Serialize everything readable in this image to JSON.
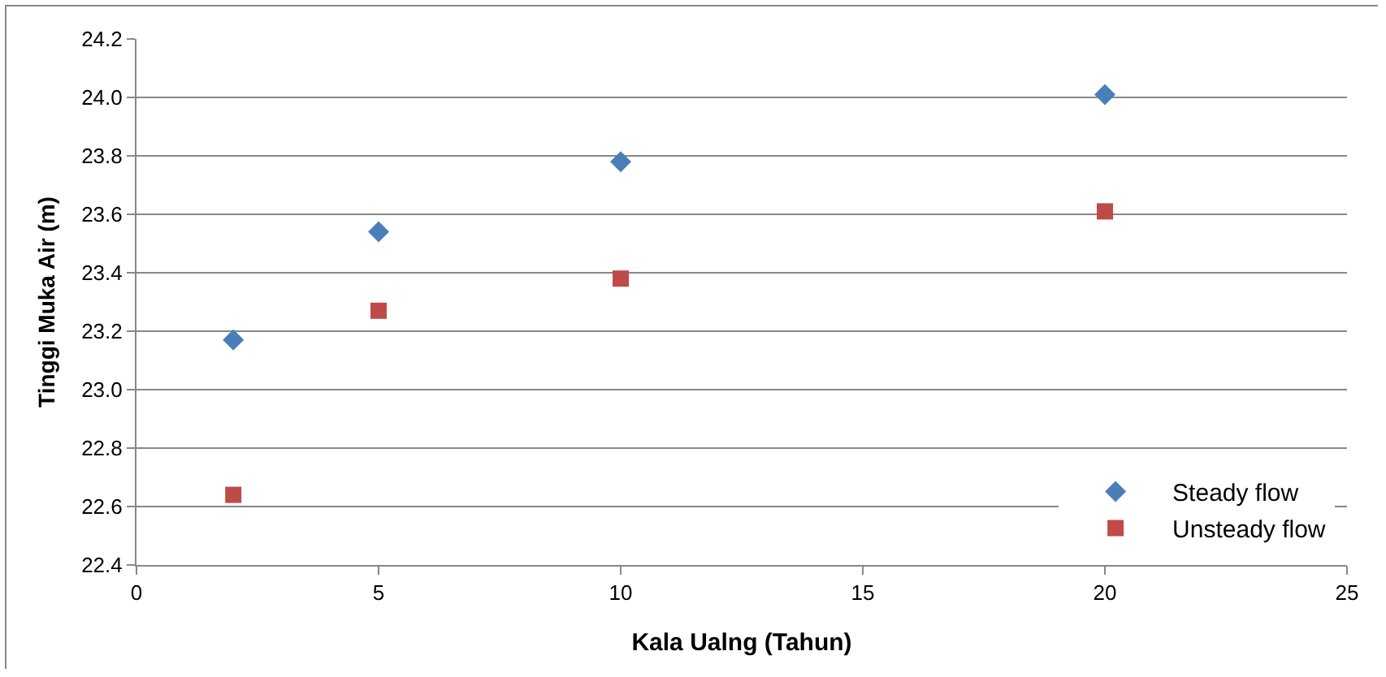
{
  "chart_data": {
    "type": "scatter",
    "xlabel": "Kala Ualng (Tahun)",
    "ylabel": "Tinggi Muka Air (m)",
    "x": [
      2,
      5,
      10,
      20
    ],
    "series": [
      {
        "name": "Steady flow",
        "color": "#4a7ebb",
        "marker": "diamond",
        "values": [
          23.17,
          23.54,
          23.78,
          24.01
        ]
      },
      {
        "name": "Unsteady flow",
        "color": "#be4b48",
        "marker": "square",
        "values": [
          22.64,
          23.27,
          23.38,
          23.61
        ]
      }
    ],
    "xlim": [
      0,
      25
    ],
    "xticks": [
      0,
      5,
      10,
      15,
      20,
      25
    ],
    "ylim": [
      22.4,
      24.2
    ],
    "yticks": [
      {
        "value": 22.4,
        "label": "22.4"
      },
      {
        "value": 22.6,
        "label": "22.6"
      },
      {
        "value": 22.8,
        "label": "22.8"
      },
      {
        "value": 23.0,
        "label": "23.0"
      },
      {
        "value": 23.2,
        "label": "23.2"
      },
      {
        "value": 23.4,
        "label": "23.4"
      },
      {
        "value": 23.6,
        "label": "23.6"
      },
      {
        "value": 23.8,
        "label": "23.8"
      },
      {
        "value": 24.0,
        "label": "24.0"
      },
      {
        "value": 24.2,
        "label": "24.2"
      }
    ],
    "grid": "y",
    "legend": "bottom right"
  }
}
